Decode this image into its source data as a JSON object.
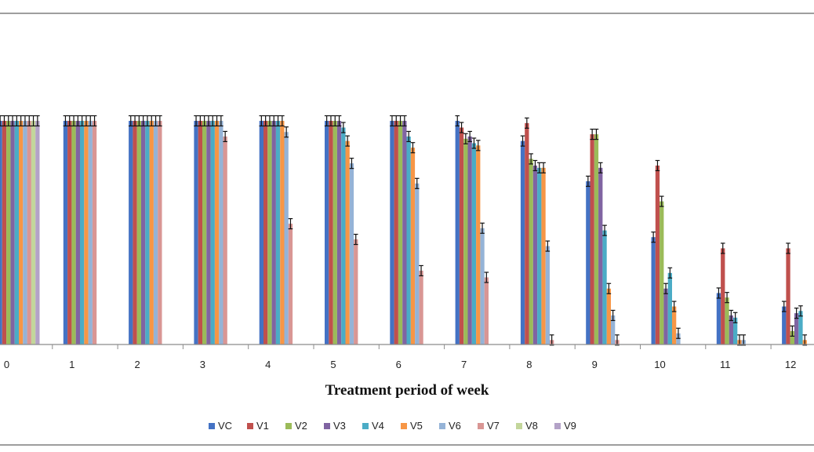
{
  "chart_data": {
    "type": "bar",
    "title": "",
    "xlabel": "Treatment period of week",
    "ylabel": "",
    "categories": [
      "0",
      "1",
      "2",
      "3",
      "4",
      "5",
      "6",
      "7",
      "8",
      "9",
      "10",
      "11",
      "12"
    ],
    "ylim": [
      0,
      100
    ],
    "grid": false,
    "legend_position": "bottom",
    "error_bars": true,
    "series": [
      {
        "name": "VC",
        "color": "#4472C4",
        "values": [
          100,
          100,
          100,
          100,
          100,
          100,
          100,
          100,
          91,
          73,
          48,
          23,
          17
        ]
      },
      {
        "name": "V1",
        "color": "#C0504D",
        "values": [
          100,
          100,
          100,
          100,
          100,
          100,
          100,
          97,
          99,
          94,
          80,
          43,
          43
        ]
      },
      {
        "name": "V2",
        "color": "#9BBB59",
        "values": [
          100,
          100,
          100,
          100,
          100,
          100,
          100,
          92,
          83,
          94,
          64,
          21,
          6
        ]
      },
      {
        "name": "V3",
        "color": "#8064A2",
        "values": [
          100,
          100,
          100,
          100,
          100,
          100,
          100,
          93,
          80,
          79,
          25,
          13,
          14
        ]
      },
      {
        "name": "V4",
        "color": "#4BACC6",
        "values": [
          100,
          100,
          100,
          100,
          100,
          97,
          93,
          90,
          79,
          51,
          32,
          12,
          15
        ]
      },
      {
        "name": "V5",
        "color": "#F79646",
        "values": [
          100,
          100,
          100,
          100,
          100,
          91,
          88,
          89,
          79,
          25,
          17,
          2,
          2
        ]
      },
      {
        "name": "V6",
        "color": "#95B3D7",
        "values": [
          100,
          100,
          100,
          100,
          95,
          81,
          72,
          52,
          44,
          13,
          5,
          2,
          0
        ]
      },
      {
        "name": "V7",
        "color": "#D99694",
        "values": [
          100,
          100,
          100,
          93,
          54,
          47,
          33,
          30,
          2,
          2,
          0,
          0,
          0
        ]
      },
      {
        "name": "V8",
        "color": "#C3D69B",
        "values": [
          100,
          0,
          0,
          0,
          0,
          0,
          0,
          0,
          0,
          0,
          0,
          0,
          0
        ]
      },
      {
        "name": "V9",
        "color": "#B3A2C7",
        "values": [
          100,
          0,
          0,
          0,
          0,
          0,
          0,
          0,
          0,
          0,
          0,
          0,
          0
        ]
      }
    ]
  }
}
